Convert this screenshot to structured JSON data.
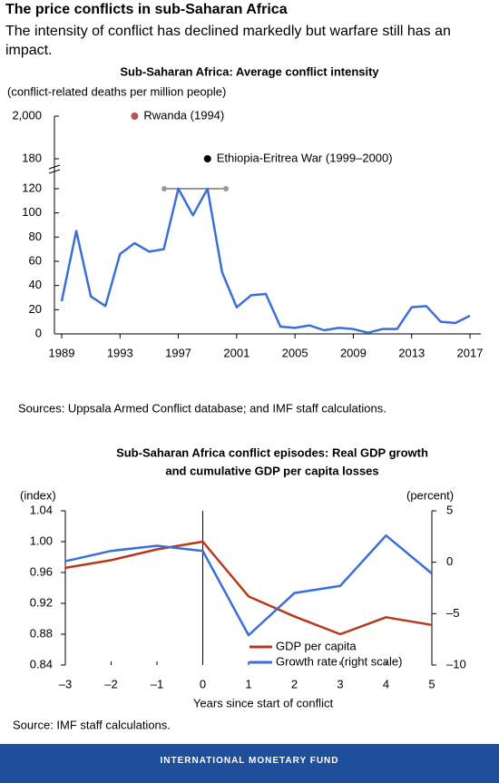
{
  "title": "The price conflicts in sub-Saharan Africa",
  "subtitle": "The intensity of conflict has declined markedly but warfare still has an impact.",
  "chart_data": [
    {
      "type": "line",
      "title": "Sub-Saharan Africa: Average conflict intensity",
      "y_label": "(conflict-related deaths per million people)",
      "x": [
        1989,
        1990,
        1991,
        1992,
        1993,
        1994,
        1995,
        1996,
        1997,
        1998,
        1999,
        2000,
        2001,
        2002,
        2003,
        2004,
        2005,
        2006,
        2007,
        2008,
        2009,
        2010,
        2011,
        2012,
        2013,
        2014,
        2015,
        2016,
        2017
      ],
      "series": [
        {
          "name": "Average conflict intensity",
          "color": "#3a6fd8",
          "values": [
            27,
            85,
            31,
            23,
            66,
            75,
            68,
            70,
            120,
            98,
            120,
            51,
            22,
            32,
            33,
            6,
            5,
            7,
            3,
            5,
            4,
            1,
            4,
            4,
            22,
            23,
            10,
            9,
            15
          ]
        }
      ],
      "xlim": [
        1989,
        2017
      ],
      "xticks": [
        1989,
        1993,
        1997,
        2001,
        2005,
        2009,
        2013,
        2017
      ],
      "ylim": [
        0,
        120
      ],
      "yticks": [
        0,
        20,
        40,
        60,
        80,
        100,
        120
      ],
      "broken_yticks": [
        180,
        {
          "value": 2000,
          "label": "2,000"
        }
      ],
      "annotations": [
        {
          "text": "Rwanda (1994)",
          "x": 1994,
          "y": 2000,
          "color": "#c0504d"
        },
        {
          "text": "Ethiopia-Eritrea War (1999–2000)",
          "x": 1999,
          "y": 180,
          "color": "#000000"
        }
      ],
      "source": "Sources: Uppsala Armed Conflict database; and IMF staff calculations."
    },
    {
      "type": "line",
      "title": [
        "Sub-Saharan Africa conflict episodes: Real GDP growth",
        "and cumulative GDP per capita losses"
      ],
      "y_label": "(index)",
      "y2_label": "(percent)",
      "x_label": "Years since start of conflict",
      "x": [
        -3,
        -2,
        -1,
        0,
        1,
        2,
        3,
        4,
        5
      ],
      "series": [
        {
          "name": "GDP per capita",
          "color": "#b5391c",
          "values": [
            0.966,
            0.976,
            0.99,
            1.0,
            0.929,
            0.903,
            0.88,
            0.902,
            0.892
          ]
        },
        {
          "name": "Growth rate (right scale)",
          "color": "#3a6fd8",
          "axis": "y2",
          "values": [
            0.1,
            1.1,
            1.6,
            1.1,
            -7.1,
            -3.0,
            -2.3,
            2.6,
            -1.1
          ]
        }
      ],
      "xlim": [
        -3,
        5
      ],
      "xticks": [
        {
          "value": -3,
          "label": "–3"
        },
        {
          "value": -2,
          "label": "–2"
        },
        {
          "value": -1,
          "label": "–1"
        },
        0,
        1,
        2,
        3,
        4,
        5
      ],
      "ylim": [
        0.84,
        1.04
      ],
      "yticks": [
        0.84,
        0.88,
        0.92,
        0.96,
        {
          "value": 1,
          "label": "1.00"
        },
        1.04
      ],
      "y2lim": [
        -10,
        5
      ],
      "y2ticks": [
        {
          "value": -10,
          "label": "–10"
        },
        {
          "value": -5,
          "label": "–5"
        },
        0,
        5
      ],
      "legend": "lower right",
      "source": "Source: IMF staff calculations."
    }
  ],
  "footer": "INTERNATIONAL MONETARY FUND"
}
